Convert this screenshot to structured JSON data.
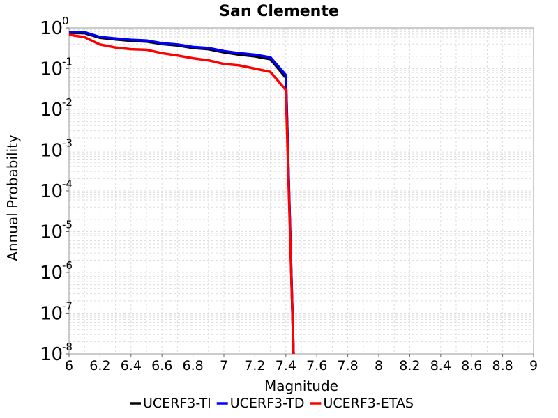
{
  "chart_data": {
    "type": "line",
    "title": "San Clemente",
    "xlabel": "Magnitude",
    "ylabel": "Annual Probability",
    "xlim": [
      6,
      9
    ],
    "ylim": [
      1e-08,
      1
    ],
    "yscale": "log",
    "grid": true,
    "legend_placement": "bottom",
    "x_ticks": [
      "6",
      "6.2",
      "6.4",
      "6.6",
      "6.8",
      "7",
      "7.2",
      "7.4",
      "7.6",
      "7.8",
      "8",
      "8.2",
      "8.4",
      "8.6",
      "8.8",
      "9"
    ],
    "y_ticks": [
      {
        "base": "10",
        "exp": "0",
        "value": 1
      },
      {
        "base": "10",
        "exp": "-1",
        "value": 0.1
      },
      {
        "base": "10",
        "exp": "-2",
        "value": 0.01
      },
      {
        "base": "10",
        "exp": "-3",
        "value": 0.001
      },
      {
        "base": "10",
        "exp": "-4",
        "value": 0.0001
      },
      {
        "base": "10",
        "exp": "-5",
        "value": 1e-05
      },
      {
        "base": "10",
        "exp": "-6",
        "value": 1e-06
      },
      {
        "base": "10",
        "exp": "-7",
        "value": 1e-07
      },
      {
        "base": "10",
        "exp": "-8",
        "value": 1e-08
      }
    ],
    "series": [
      {
        "name": "UCERF3-TI",
        "color": "#000000",
        "x": [
          6.0,
          6.1,
          6.2,
          6.3,
          6.4,
          6.5,
          6.6,
          6.7,
          6.8,
          6.9,
          7.0,
          7.1,
          7.2,
          7.3,
          7.4,
          7.45
        ],
        "y": [
          0.76,
          0.74,
          0.57,
          0.52,
          0.48,
          0.46,
          0.4,
          0.37,
          0.32,
          0.3,
          0.25,
          0.22,
          0.2,
          0.17,
          0.06,
          1e-08
        ]
      },
      {
        "name": "UCERF3-TD",
        "color": "#0000ff",
        "x": [
          6.0,
          6.1,
          6.2,
          6.3,
          6.4,
          6.5,
          6.6,
          6.7,
          6.8,
          6.9,
          7.0,
          7.1,
          7.2,
          7.3,
          7.4,
          7.45
        ],
        "y": [
          0.79,
          0.78,
          0.6,
          0.55,
          0.51,
          0.49,
          0.42,
          0.39,
          0.34,
          0.32,
          0.27,
          0.24,
          0.22,
          0.19,
          0.07,
          1e-08
        ]
      },
      {
        "name": "UCERF3-ETAS",
        "color": "#ff0000",
        "x": [
          6.0,
          6.1,
          6.2,
          6.3,
          6.4,
          6.5,
          6.6,
          6.7,
          6.8,
          6.9,
          7.0,
          7.1,
          7.2,
          7.3,
          7.4,
          7.45
        ],
        "y": [
          0.68,
          0.59,
          0.39,
          0.33,
          0.3,
          0.29,
          0.24,
          0.21,
          0.18,
          0.16,
          0.13,
          0.12,
          0.1,
          0.083,
          0.03,
          1e-08
        ]
      }
    ]
  }
}
